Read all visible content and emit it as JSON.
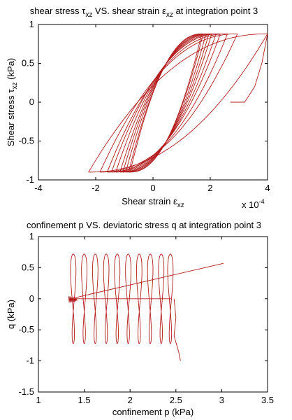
{
  "chart_data": [
    {
      "type": "line",
      "title_parts": [
        "shear stress τ",
        "xz",
        " VS. shear strain ε",
        "xz",
        " at integration point 3"
      ],
      "xlabel_parts": [
        "Shear strain ε",
        "xz"
      ],
      "ylabel_parts": [
        "Shear stress τ",
        "xz",
        " (kPa)"
      ],
      "x_exponent_base": "x 10",
      "x_exponent": "-4",
      "xlim": [
        -4,
        4
      ],
      "ylim": [
        -1,
        1
      ],
      "xticks": [
        -4,
        -2,
        0,
        2,
        4
      ],
      "yticks": [
        -1,
        -0.5,
        0,
        0.5,
        1
      ],
      "xtick_labels": [
        "-4",
        "-2",
        "0",
        "2",
        "4"
      ],
      "ytick_labels": [
        "-1",
        "-0.5",
        "0",
        "0.5",
        "1"
      ],
      "grid": false,
      "color": "#b31b1b",
      "loops": [
        {
          "xmin": -2.25,
          "xmax": 4.0,
          "ymax": 0.88
        },
        {
          "xmin": -1.85,
          "xmax": 2.95,
          "ymax": 0.88
        },
        {
          "xmin": -1.6,
          "xmax": 2.6,
          "ymax": 0.88
        },
        {
          "xmin": -1.45,
          "xmax": 2.35,
          "ymax": 0.88
        },
        {
          "xmin": -1.3,
          "xmax": 2.2,
          "ymax": 0.88
        },
        {
          "xmin": -1.15,
          "xmax": 2.05,
          "ymax": 0.88
        },
        {
          "xmin": -1.05,
          "xmax": 1.95,
          "ymax": 0.88
        },
        {
          "xmin": -0.95,
          "xmax": 1.85,
          "ymax": 0.88
        },
        {
          "xmin": -0.85,
          "xmax": 1.75,
          "ymax": 0.88
        },
        {
          "xmin": -0.8,
          "xmax": 1.7,
          "ymax": 0.88
        }
      ],
      "ymin_loop": -0.9,
      "start_path": [
        [
          4.0,
          0.88
        ],
        [
          3.8,
          0.5
        ],
        [
          3.55,
          0.2
        ],
        [
          3.2,
          0.0
        ],
        [
          2.85,
          0.0
        ],
        [
          2.7,
          0.0
        ]
      ]
    },
    {
      "type": "line",
      "title_parts": [
        "confinement p VS. deviatoric stress q at integration point 3"
      ],
      "xlabel_parts": [
        "confinement p (kPa)"
      ],
      "ylabel_parts": [
        "q (kPa)"
      ],
      "xlim": [
        1,
        3.5
      ],
      "ylim": [
        -1.5,
        1
      ],
      "xticks": [
        1,
        1.5,
        2,
        2.5,
        3,
        3.5
      ],
      "yticks": [
        -1.5,
        -1,
        -0.5,
        0,
        0.5,
        1
      ],
      "xtick_labels": [
        "1",
        "1.5",
        "2",
        "2.5",
        "3",
        "3.5"
      ],
      "ytick_labels": [
        "-1.5",
        "-1",
        "-0.5",
        "0",
        "0.5",
        "1"
      ],
      "grid": false,
      "color": "#b31b1b",
      "lobe_centers": [
        1.38,
        1.5,
        1.62,
        1.74,
        1.86,
        1.98,
        2.1,
        2.22,
        2.34,
        2.44
      ],
      "q_amplitude": 0.72,
      "line_from": [
        1.35,
        0.0
      ],
      "line_to": [
        3.02,
        0.57
      ],
      "hook_path": [
        [
          2.48,
          0.0
        ],
        [
          2.5,
          -0.3
        ],
        [
          2.48,
          -0.6
        ],
        [
          2.53,
          -0.85
        ],
        [
          2.55,
          -1.0
        ]
      ]
    }
  ]
}
